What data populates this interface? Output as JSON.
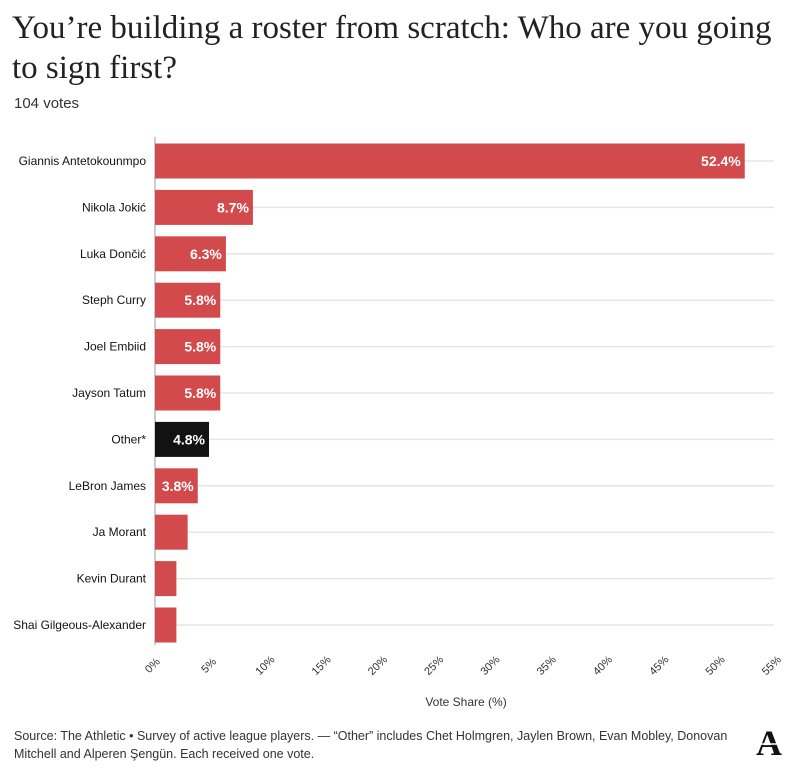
{
  "header": {
    "title": "You’re building a roster from scratch: Who are you going to sign first?",
    "subtitle": "104 votes"
  },
  "chart_data": {
    "type": "bar",
    "orientation": "horizontal",
    "categories": [
      "Giannis Antetokounmpo",
      "Nikola Jokić",
      "Luka Dončić",
      "Steph Curry",
      "Joel Embiid",
      "Jayson Tatum",
      "Other*",
      "LeBron James",
      "Ja Morant",
      "Kevin Durant",
      "Shai Gilgeous-Alexander"
    ],
    "values": [
      52.4,
      8.7,
      6.3,
      5.8,
      5.8,
      5.8,
      4.8,
      3.8,
      2.9,
      1.9,
      1.9
    ],
    "data_labels": [
      "52.4%",
      "8.7%",
      "6.3%",
      "5.8%",
      "5.8%",
      "5.8%",
      "4.8%",
      "3.8%",
      "",
      "",
      ""
    ],
    "highlight_category": "Other*",
    "colors": {
      "bar": "#d34a4d",
      "highlight": "#121212",
      "grid": "#e6e6e6",
      "label": "#ffffff"
    },
    "xlabel": "Vote Share (%)",
    "xlim": [
      0,
      55
    ],
    "xticks": [
      0,
      5,
      10,
      15,
      20,
      25,
      30,
      35,
      40,
      45,
      50,
      55
    ],
    "xtick_labels": [
      "0%",
      "5%",
      "10%",
      "15%",
      "20%",
      "25%",
      "30%",
      "35%",
      "40%",
      "45%",
      "50%",
      "55%"
    ],
    "grid": true
  },
  "footer": {
    "source": "Source: The Athletic • Survey of active league players. — “Other” includes Chet Holmgren, Jaylen Brown, Evan Mobley, Donovan Mitchell and Alperen Şengün. Each received one vote.",
    "logo_letter": "A"
  }
}
